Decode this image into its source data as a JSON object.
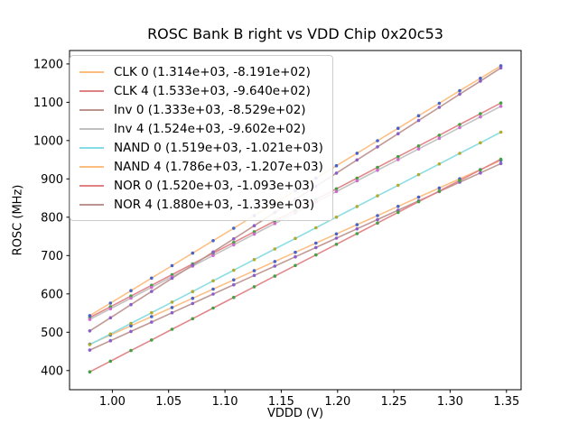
{
  "chart_data": {
    "type": "scatter",
    "title": "ROSC Bank B right vs VDD Chip 0x20c53",
    "xlabel": "VDDD (V)",
    "ylabel": "ROSC (MHz)",
    "xlim": [
      0.962,
      1.363
    ],
    "ylim": [
      350,
      1235
    ],
    "xticks": [
      1.0,
      1.05,
      1.1,
      1.15,
      1.2,
      1.25,
      1.3,
      1.35
    ],
    "yticks": [
      400,
      500,
      600,
      700,
      800,
      900,
      1000,
      1100,
      1200
    ],
    "grid": false,
    "legend_position": "upper left",
    "x": [
      0.98,
      0.9983,
      1.0165,
      1.0348,
      1.053,
      1.0713,
      1.0895,
      1.1078,
      1.126,
      1.1443,
      1.1625,
      1.1808,
      1.199,
      1.2173,
      1.2355,
      1.2538,
      1.272,
      1.2903,
      1.3085,
      1.3268,
      1.345
    ],
    "series": [
      {
        "name": "CLK 0",
        "label": "CLK 0 (1.314e+03, -8.191e+02)",
        "slope": 1314,
        "intercept": -819.1,
        "line_color": "#fcbd7e",
        "marker_color": "#4663c8",
        "y": [
          468.6,
          492.6,
          516.6,
          540.6,
          564.5,
          588.5,
          612.5,
          636.5,
          660.5,
          684.4,
          708.4,
          732.4,
          756.4,
          780.4,
          804.3,
          828.3,
          852.3,
          876.3,
          900.3,
          924.2,
          948.2
        ]
      },
      {
        "name": "CLK 4",
        "label": "CLK 4 (1.533e+03, -9.640e+02)",
        "slope": 1533,
        "intercept": -964.0,
        "line_color": "#e08184",
        "marker_color": "#44a044",
        "y": [
          538.3,
          566.3,
          594.3,
          622.3,
          650.2,
          678.2,
          706.2,
          734.2,
          762.2,
          790.1,
          818.1,
          846.1,
          874.1,
          902.0,
          930.0,
          958.0,
          986.0,
          1013.9,
          1041.9,
          1069.9,
          1097.9
        ]
      },
      {
        "name": "Inv 0",
        "label": "Inv 0 (1.333e+03, -8.529e+02)",
        "slope": 1333,
        "intercept": -852.9,
        "line_color": "#bd938f",
        "marker_color": "#8a5fc9",
        "y": [
          453.4,
          477.8,
          502.1,
          526.4,
          550.7,
          575.1,
          599.4,
          623.7,
          648.1,
          672.4,
          696.7,
          721.0,
          745.4,
          769.7,
          794.0,
          818.3,
          842.7,
          867.0,
          891.3,
          915.7,
          940.0
        ]
      },
      {
        "name": "Inv 4",
        "label": "Inv 4 (1.524e+03, -9.602e+02)",
        "slope": 1524,
        "intercept": -960.2,
        "line_color": "#bfbfbf",
        "marker_color": "#cf6ad1",
        "y": [
          533.3,
          561.1,
          588.9,
          616.8,
          644.6,
          672.4,
          700.2,
          728.0,
          755.8,
          783.6,
          811.5,
          839.3,
          867.1,
          894.9,
          922.7,
          950.5,
          978.3,
          1006.1,
          1034.0,
          1061.8,
          1089.6
        ]
      },
      {
        "name": "NAND 0",
        "label": "NAND 0 (1.519e+03, -1.021e+03)",
        "slope": 1519,
        "intercept": -1021,
        "line_color": "#85dbe3",
        "marker_color": "#b3ab2f",
        "y": [
          467.6,
          495.3,
          523.1,
          550.8,
          578.5,
          606.2,
          634.0,
          661.7,
          689.4,
          717.1,
          744.8,
          772.6,
          800.3,
          828.0,
          855.7,
          883.4,
          911.2,
          938.9,
          966.6,
          994.3,
          1022.1
        ]
      },
      {
        "name": "NAND 4",
        "label": "NAND 4 (1.786e+03, -1.207e+03)",
        "slope": 1786,
        "intercept": -1207,
        "line_color": "#fcbd7e",
        "marker_color": "#4663c8",
        "y": [
          543.3,
          575.9,
          608.5,
          641.1,
          673.7,
          706.3,
          738.8,
          771.4,
          804.0,
          836.6,
          869.2,
          901.8,
          934.4,
          967.0,
          999.6,
          1032.2,
          1064.8,
          1097.4,
          1130.0,
          1162.6,
          1195.2
        ]
      },
      {
        "name": "NOR 0",
        "label": "NOR 0 (1.520e+03, -1.093e+03)",
        "slope": 1520,
        "intercept": -1093,
        "line_color": "#e08184",
        "marker_color": "#44a044",
        "y": [
          396.6,
          424.3,
          452.1,
          479.8,
          507.6,
          535.3,
          563.0,
          590.8,
          618.5,
          646.3,
          674.0,
          701.7,
          729.5,
          757.2,
          785.0,
          812.7,
          840.4,
          868.2,
          895.9,
          923.7,
          951.4
        ]
      },
      {
        "name": "NOR 4",
        "label": "NOR 4 (1.880e+03, -1.339e+03)",
        "slope": 1880,
        "intercept": -1339,
        "line_color": "#bd938f",
        "marker_color": "#8a5fc9",
        "y": [
          503.4,
          537.7,
          572.0,
          606.3,
          640.6,
          675.0,
          709.3,
          743.6,
          777.9,
          812.2,
          846.5,
          880.8,
          915.1,
          949.4,
          983.7,
          1018.1,
          1052.4,
          1086.7,
          1121.0,
          1155.3,
          1189.6
        ]
      }
    ]
  }
}
